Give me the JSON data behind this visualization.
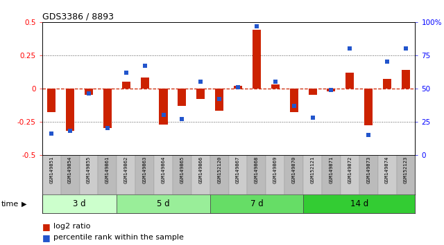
{
  "title": "GDS3386 / 8893",
  "samples": [
    "GSM149851",
    "GSM149854",
    "GSM149855",
    "GSM149861",
    "GSM149862",
    "GSM149863",
    "GSM149864",
    "GSM149865",
    "GSM149866",
    "GSM152120",
    "GSM149867",
    "GSM149868",
    "GSM149869",
    "GSM149870",
    "GSM152121",
    "GSM149871",
    "GSM149872",
    "GSM149873",
    "GSM149874",
    "GSM152123"
  ],
  "log2_ratio": [
    -0.18,
    -0.32,
    -0.05,
    -0.3,
    0.05,
    0.08,
    -0.27,
    -0.13,
    -0.08,
    -0.17,
    0.02,
    0.44,
    0.03,
    -0.18,
    -0.05,
    -0.02,
    0.12,
    -0.28,
    0.07,
    0.14
  ],
  "percentile_rank": [
    16,
    18,
    46,
    20,
    62,
    67,
    30,
    27,
    55,
    42,
    51,
    97,
    55,
    37,
    28,
    49,
    80,
    15,
    70,
    80
  ],
  "groups": [
    {
      "label": "3 d",
      "start": 0,
      "end": 4
    },
    {
      "label": "5 d",
      "start": 4,
      "end": 9
    },
    {
      "label": "7 d",
      "start": 9,
      "end": 14
    },
    {
      "label": "14 d",
      "start": 14,
      "end": 20
    }
  ],
  "group_colors": [
    "#ccffcc",
    "#99ee99",
    "#66dd66",
    "#33cc33"
  ],
  "ylim_left": [
    -0.5,
    0.5
  ],
  "ylim_right": [
    0,
    100
  ],
  "yticks_left": [
    -0.5,
    -0.25,
    0,
    0.25,
    0.5
  ],
  "yticks_right": [
    0,
    25,
    50,
    75,
    100
  ],
  "bar_color": "#cc2200",
  "square_color": "#2255cc",
  "hline_color": "#cc2200",
  "dotline_color": "#555555",
  "bg_color": "#ffffff",
  "cell_color_even": "#cccccc",
  "cell_color_odd": "#bbbbbb"
}
